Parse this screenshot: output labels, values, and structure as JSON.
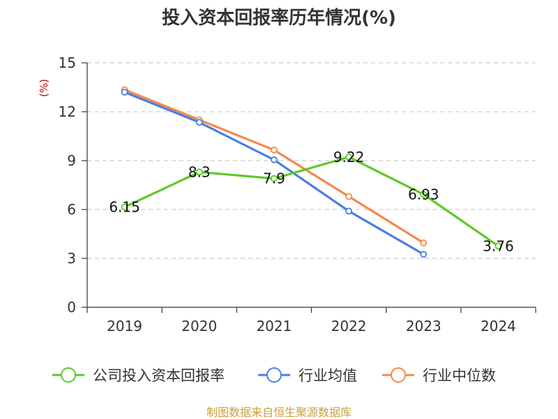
{
  "chart_data": {
    "type": "line",
    "title": "投入资本回报率历年情况(%)",
    "ylabel": "(%)",
    "ylim": [
      0,
      15
    ],
    "yticks": [
      0,
      3,
      6,
      9,
      12,
      15
    ],
    "categories": [
      "2019",
      "2020",
      "2021",
      "2022",
      "2023",
      "2024"
    ],
    "grid": true,
    "legend_position": "bottom",
    "series": [
      {
        "name": "公司投入资本回报率",
        "color": "#5cc92a",
        "values": [
          6.15,
          8.3,
          7.9,
          9.22,
          6.93,
          3.76
        ],
        "labels": [
          "6.15",
          "8.3",
          "7.9",
          "9.22",
          "6.93",
          "3.76"
        ]
      },
      {
        "name": "行业均值",
        "color": "#4a7fe0",
        "values": [
          13.2,
          11.35,
          9.05,
          5.9,
          3.25,
          null
        ]
      },
      {
        "name": "行业中位数",
        "color": "#f5884c",
        "values": [
          13.35,
          11.5,
          9.65,
          6.8,
          3.95,
          null
        ]
      }
    ],
    "source": "制图数据来自恒生聚源数据库"
  }
}
